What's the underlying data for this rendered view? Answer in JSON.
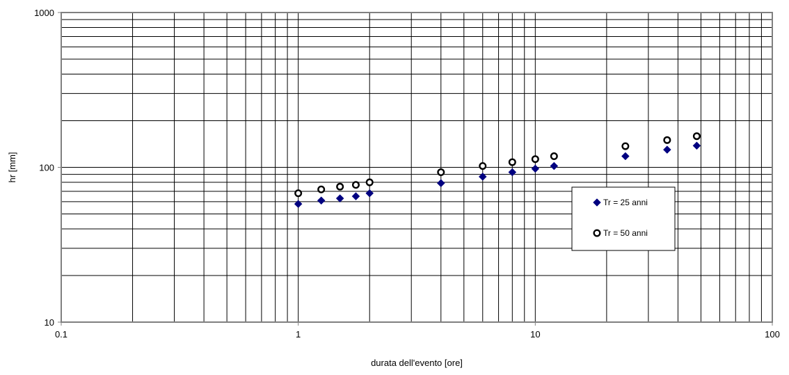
{
  "chart_data": {
    "type": "scatter",
    "title": "",
    "xlabel": "durata dell'evento [ore]",
    "ylabel": "hr [mm]",
    "x_scale": "log",
    "y_scale": "log",
    "xlim": [
      0.1,
      100
    ],
    "ylim": [
      10,
      1000
    ],
    "x_tick_labels": [
      "0.1",
      "1",
      "10",
      "100"
    ],
    "y_tick_labels": [
      "10",
      "100",
      "1000"
    ],
    "grid": true,
    "legend_position": "right",
    "series": [
      {
        "name": "Tr = 25 anni",
        "marker": "diamond",
        "color": "#000080",
        "points": [
          {
            "x": 1,
            "y": 58
          },
          {
            "x": 1.25,
            "y": 61
          },
          {
            "x": 1.5,
            "y": 63
          },
          {
            "x": 1.75,
            "y": 65
          },
          {
            "x": 2,
            "y": 68
          },
          {
            "x": 4,
            "y": 79
          },
          {
            "x": 6,
            "y": 87
          },
          {
            "x": 8,
            "y": 93
          },
          {
            "x": 10,
            "y": 98
          },
          {
            "x": 12,
            "y": 102
          },
          {
            "x": 24,
            "y": 118
          },
          {
            "x": 36,
            "y": 130
          },
          {
            "x": 48,
            "y": 138
          }
        ]
      },
      {
        "name": "Tr = 50 anni",
        "marker": "circle",
        "color": "#000000",
        "points": [
          {
            "x": 1,
            "y": 68
          },
          {
            "x": 1.25,
            "y": 72
          },
          {
            "x": 1.5,
            "y": 75
          },
          {
            "x": 1.75,
            "y": 77
          },
          {
            "x": 2,
            "y": 80
          },
          {
            "x": 4,
            "y": 93
          },
          {
            "x": 6,
            "y": 102
          },
          {
            "x": 8,
            "y": 108
          },
          {
            "x": 10,
            "y": 113
          },
          {
            "x": 12,
            "y": 118
          },
          {
            "x": 24,
            "y": 137
          },
          {
            "x": 36,
            "y": 150
          },
          {
            "x": 48,
            "y": 159
          }
        ]
      }
    ]
  }
}
